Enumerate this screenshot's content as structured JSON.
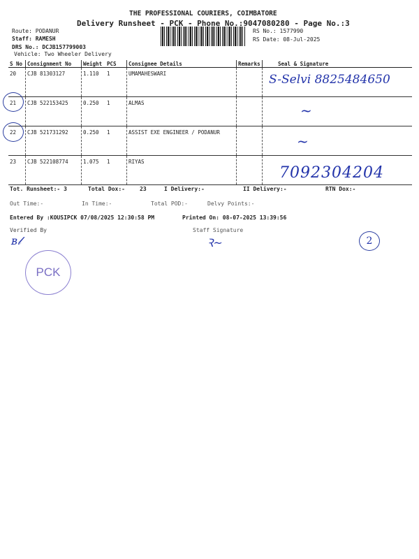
{
  "header": {
    "company": "THE PROFESSIONAL COURIERS, COIMBATORE",
    "title": "Delivery Runsheet - PCK - Phone No.:9047080280 - Page No.:3",
    "route": "Route: PODANUR",
    "staff": "Staff: RAMESH",
    "drs": "DRS No.: DCJB157799003",
    "vehicle": "Vehicle: Two Wheeler Delivery",
    "rs_no": "RS No.: 1577990",
    "rs_date": "RS Date: 08-Jul-2025"
  },
  "table": {
    "columns": [
      "S No",
      "Consignment No",
      "Weight",
      "PCS",
      "Consignee Details",
      "Remarks",
      "Seal & Signature"
    ],
    "rows": [
      {
        "sno": "20",
        "cons": "CJB 81303127",
        "weight": "1.110",
        "pcs": "1",
        "details": "UMAMAHESWARI",
        "remarks": "",
        "sign": "S-Selvi 8825484650"
      },
      {
        "sno": "21",
        "cons": "CJB 522153425",
        "weight": "0.250",
        "pcs": "1",
        "details": "ALMAS",
        "remarks": "",
        "sign": ""
      },
      {
        "sno": "22",
        "cons": "CJB 521731292",
        "weight": "0.250",
        "pcs": "1",
        "details": "ASSIST EXE ENGINEER / PODANUR",
        "remarks": "",
        "sign": ""
      },
      {
        "sno": "23",
        "cons": "CJB 522108774",
        "weight": "1.075",
        "pcs": "1",
        "details": "RIYAS",
        "remarks": "",
        "sign": "7092304204"
      }
    ]
  },
  "summary": {
    "tot_runsheet": "Tot. Runsheet:- 3",
    "total_dox": "Total Dox:-",
    "total_dox_val": "23",
    "i_delivery": "I Delivery:-",
    "ii_delivery": "II Delivery:-",
    "rtn_dox": "RTN Dox:-",
    "out_time": "Out Time:-",
    "in_time": "In Time:-",
    "total_pod": "Total POD:-",
    "delvy_points": "Delvy Points:-",
    "entered_by": "Entered By :KOUSIPCK 07/08/2025 12:30:58 PM",
    "printed_on": "Printed On: 08-07-2025 13:39:56",
    "verified_by": "Verified By",
    "staff_signature": "Staff Signature"
  },
  "stamp": {
    "text": "PCK"
  },
  "page_mark": "2",
  "colors": {
    "ink": "#2233aa"
  }
}
